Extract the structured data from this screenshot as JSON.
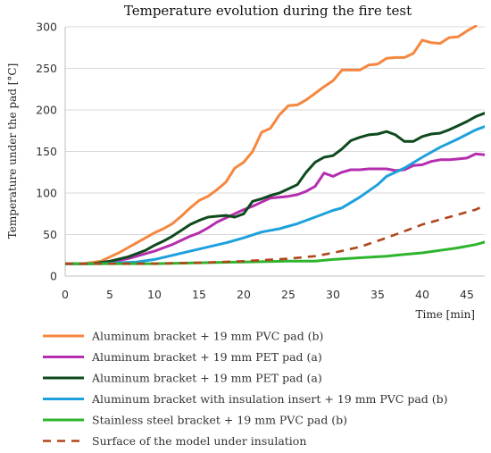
{
  "chart_data": {
    "type": "line",
    "title": "Temperature evolution during the fire test",
    "xlabel": "Time [min]",
    "ylabel": "Temperature under the pad [°C]",
    "xlim": [
      0,
      47
    ],
    "ylim": [
      0,
      300
    ],
    "xticks": [
      0,
      5,
      10,
      15,
      20,
      25,
      30,
      35,
      40,
      45
    ],
    "yticks": [
      0,
      50,
      100,
      150,
      200,
      250,
      300
    ],
    "grid": "horizontal",
    "legend": "bottom",
    "series": [
      {
        "name": "Aluminum bracket + 19 mm PVC pad (b)",
        "color": "#f5873f",
        "dash": "solid",
        "points": [
          [
            0,
            15
          ],
          [
            2,
            15
          ],
          [
            4,
            18
          ],
          [
            5,
            23
          ],
          [
            6,
            28
          ],
          [
            8,
            40
          ],
          [
            9,
            46
          ],
          [
            10,
            52
          ],
          [
            11,
            57
          ],
          [
            12,
            63
          ],
          [
            13,
            72
          ],
          [
            14,
            82
          ],
          [
            15,
            91
          ],
          [
            16,
            96
          ],
          [
            17,
            104
          ],
          [
            18,
            113
          ],
          [
            19,
            130
          ],
          [
            20,
            137
          ],
          [
            21,
            150
          ],
          [
            22,
            173
          ],
          [
            23,
            178
          ],
          [
            24,
            194
          ],
          [
            25,
            205
          ],
          [
            26,
            206
          ],
          [
            27,
            212
          ],
          [
            28,
            220
          ],
          [
            29,
            228
          ],
          [
            30,
            235
          ],
          [
            31,
            248
          ],
          [
            32,
            248
          ],
          [
            33,
            248
          ],
          [
            34,
            254
          ],
          [
            35,
            255
          ],
          [
            36,
            262
          ],
          [
            37,
            263
          ],
          [
            38,
            263
          ],
          [
            39,
            268
          ],
          [
            40,
            284
          ],
          [
            41,
            281
          ],
          [
            42,
            280
          ],
          [
            43,
            287
          ],
          [
            44,
            288
          ],
          [
            45,
            295
          ],
          [
            46,
            301
          ]
        ]
      },
      {
        "name": "Aluminum bracket + 19 mm PET pad (a)",
        "color": "#b42eae",
        "dash": "solid",
        "points": [
          [
            0,
            15
          ],
          [
            3,
            15
          ],
          [
            5,
            17
          ],
          [
            7,
            21
          ],
          [
            9,
            27
          ],
          [
            10,
            30
          ],
          [
            11,
            34
          ],
          [
            12,
            38
          ],
          [
            13,
            43
          ],
          [
            14,
            48
          ],
          [
            15,
            52
          ],
          [
            16,
            58
          ],
          [
            17,
            65
          ],
          [
            18,
            70
          ],
          [
            19,
            75
          ],
          [
            20,
            80
          ],
          [
            21,
            84
          ],
          [
            22,
            89
          ],
          [
            23,
            94
          ],
          [
            24,
            95
          ],
          [
            25,
            96
          ],
          [
            26,
            98
          ],
          [
            27,
            102
          ],
          [
            28,
            108
          ],
          [
            29,
            124
          ],
          [
            30,
            120
          ],
          [
            31,
            125
          ],
          [
            32,
            128
          ],
          [
            33,
            128
          ],
          [
            34,
            129
          ],
          [
            35,
            129
          ],
          [
            36,
            129
          ],
          [
            37,
            127
          ],
          [
            38,
            128
          ],
          [
            39,
            133
          ],
          [
            40,
            134
          ],
          [
            41,
            138
          ],
          [
            42,
            140
          ],
          [
            43,
            140
          ],
          [
            44,
            141
          ],
          [
            45,
            142
          ],
          [
            46,
            147
          ],
          [
            47,
            146
          ]
        ]
      },
      {
        "name": "Aluminum bracket + 19 mm PET pad (a)",
        "color": "#0e4a1e",
        "dash": "solid",
        "points": [
          [
            0,
            15
          ],
          [
            3,
            15
          ],
          [
            5,
            18
          ],
          [
            7,
            23
          ],
          [
            9,
            31
          ],
          [
            10,
            37
          ],
          [
            11,
            42
          ],
          [
            12,
            48
          ],
          [
            13,
            55
          ],
          [
            14,
            62
          ],
          [
            15,
            67
          ],
          [
            16,
            71
          ],
          [
            17,
            72
          ],
          [
            18,
            73
          ],
          [
            19,
            71
          ],
          [
            20,
            75
          ],
          [
            21,
            90
          ],
          [
            22,
            93
          ],
          [
            23,
            97
          ],
          [
            24,
            100
          ],
          [
            25,
            105
          ],
          [
            26,
            110
          ],
          [
            27,
            125
          ],
          [
            28,
            137
          ],
          [
            29,
            143
          ],
          [
            30,
            145
          ],
          [
            31,
            153
          ],
          [
            32,
            163
          ],
          [
            33,
            167
          ],
          [
            34,
            170
          ],
          [
            35,
            171
          ],
          [
            36,
            174
          ],
          [
            37,
            170
          ],
          [
            38,
            162
          ],
          [
            39,
            162
          ],
          [
            40,
            168
          ],
          [
            41,
            171
          ],
          [
            42,
            172
          ],
          [
            43,
            176
          ],
          [
            44,
            181
          ],
          [
            45,
            186
          ],
          [
            46,
            192
          ],
          [
            47,
            196
          ]
        ]
      },
      {
        "name": "Aluminum bracket with insulation insert + 19 mm PVC pad (b)",
        "color": "#1da1dc",
        "dash": "solid",
        "points": [
          [
            0,
            15
          ],
          [
            4,
            15
          ],
          [
            6,
            16
          ],
          [
            8,
            17
          ],
          [
            10,
            20
          ],
          [
            12,
            25
          ],
          [
            14,
            30
          ],
          [
            16,
            35
          ],
          [
            18,
            40
          ],
          [
            20,
            46
          ],
          [
            22,
            53
          ],
          [
            24,
            57
          ],
          [
            26,
            63
          ],
          [
            28,
            71
          ],
          [
            30,
            79
          ],
          [
            31,
            82
          ],
          [
            33,
            95
          ],
          [
            35,
            110
          ],
          [
            36,
            120
          ],
          [
            38,
            130
          ],
          [
            40,
            143
          ],
          [
            42,
            155
          ],
          [
            44,
            165
          ],
          [
            46,
            176
          ],
          [
            47,
            180
          ]
        ]
      },
      {
        "name": "Stainless steel bracket + 19 mm PVC pad (b)",
        "color": "#2db52d",
        "dash": "solid",
        "points": [
          [
            0,
            15
          ],
          [
            10,
            15
          ],
          [
            15,
            16
          ],
          [
            20,
            17
          ],
          [
            25,
            18
          ],
          [
            28,
            18
          ],
          [
            30,
            20
          ],
          [
            33,
            22
          ],
          [
            36,
            24
          ],
          [
            38,
            26
          ],
          [
            40,
            28
          ],
          [
            42,
            31
          ],
          [
            44,
            34
          ],
          [
            46,
            38
          ],
          [
            47,
            41
          ]
        ]
      },
      {
        "name": "Surface of the model under insulation",
        "color": "#b0461c",
        "dash": "dashed",
        "points": [
          [
            0,
            15
          ],
          [
            10,
            15
          ],
          [
            15,
            16
          ],
          [
            20,
            18
          ],
          [
            25,
            21
          ],
          [
            28,
            24
          ],
          [
            30,
            28
          ],
          [
            33,
            35
          ],
          [
            36,
            46
          ],
          [
            38,
            54
          ],
          [
            40,
            62
          ],
          [
            42,
            68
          ],
          [
            44,
            74
          ],
          [
            46,
            80
          ],
          [
            47,
            85
          ]
        ]
      }
    ]
  }
}
